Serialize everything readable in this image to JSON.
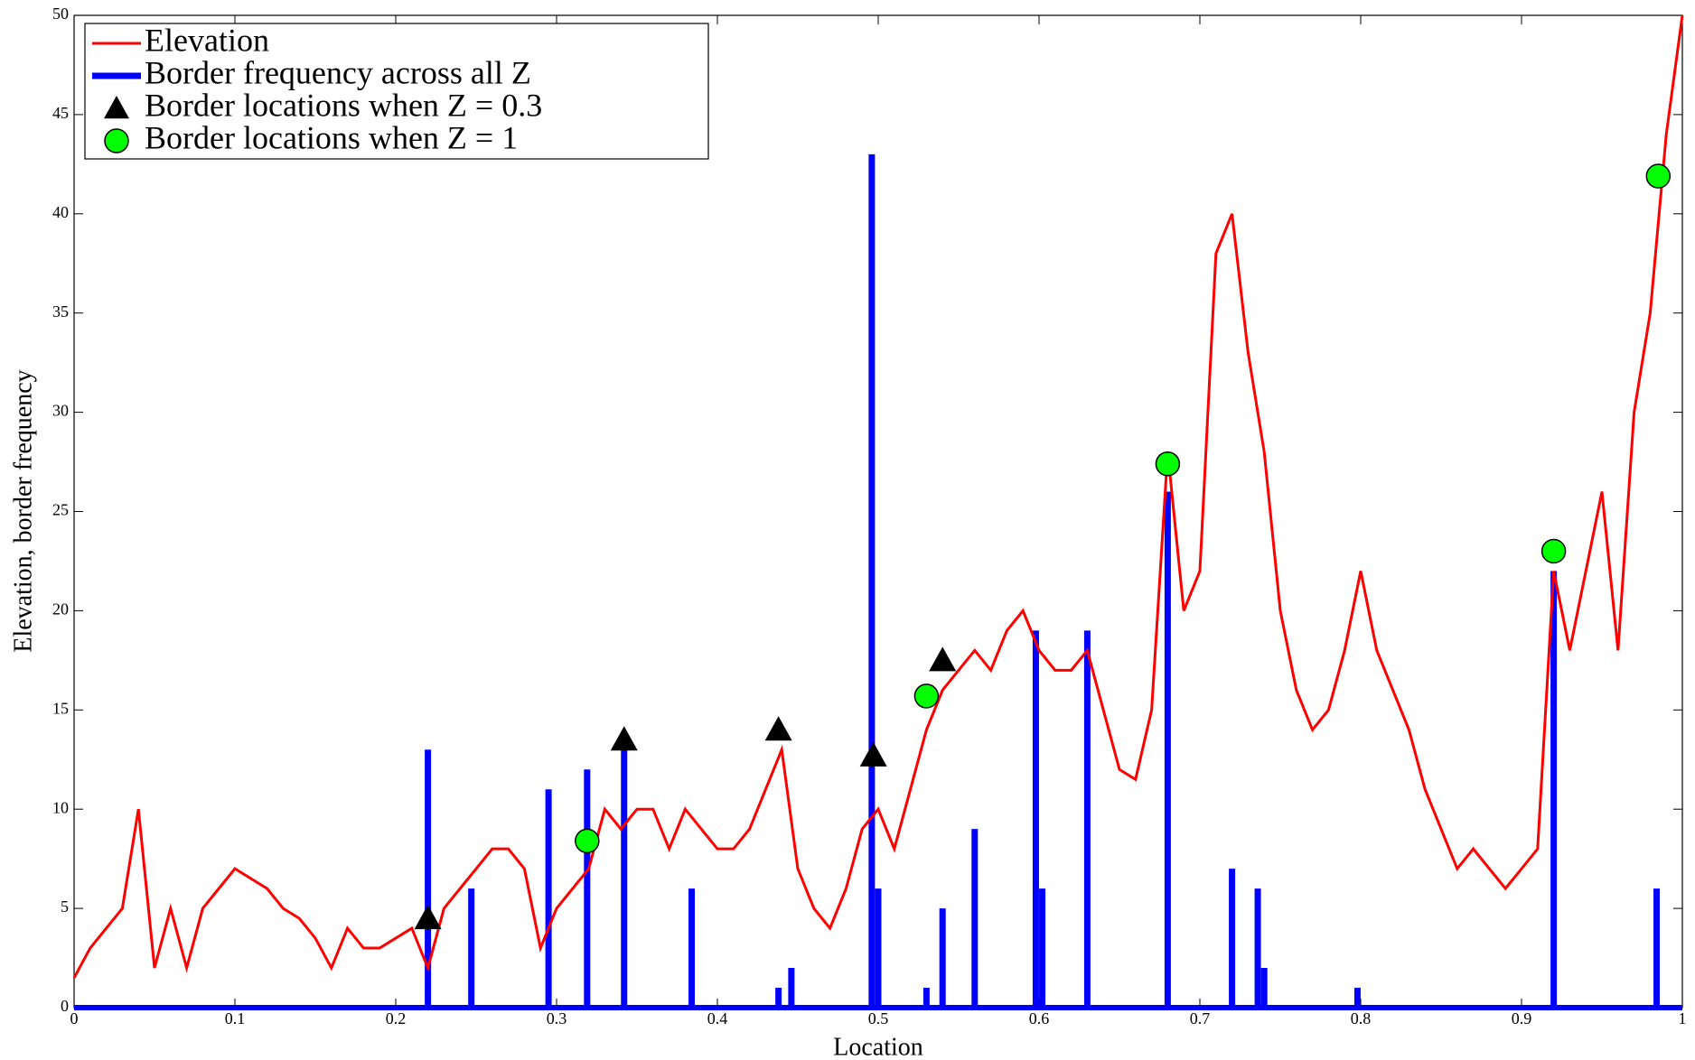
{
  "chart_data": {
    "type": "line",
    "x_label": "Location",
    "y_label": "Elevation, border frequency",
    "xlim": [
      0,
      1
    ],
    "ylim": [
      0,
      50
    ],
    "xticks": [
      0,
      0.1,
      0.2,
      0.3,
      0.4,
      0.5,
      0.6,
      0.7,
      0.8,
      0.9,
      1
    ],
    "yticks": [
      0,
      5,
      10,
      15,
      20,
      25,
      30,
      35,
      40,
      45,
      50
    ],
    "legend": "upper left",
    "series": [
      {
        "name": "Elevation",
        "type": "line",
        "color": "#ff0000",
        "x": [
          0,
          0.01,
          0.02,
          0.03,
          0.04,
          0.05,
          0.06,
          0.07,
          0.08,
          0.09,
          0.1,
          0.11,
          0.12,
          0.13,
          0.14,
          0.15,
          0.16,
          0.17,
          0.18,
          0.19,
          0.2,
          0.21,
          0.22,
          0.23,
          0.24,
          0.25,
          0.26,
          0.27,
          0.28,
          0.29,
          0.3,
          0.31,
          0.32,
          0.33,
          0.34,
          0.35,
          0.36,
          0.37,
          0.38,
          0.39,
          0.4,
          0.41,
          0.42,
          0.43,
          0.44,
          0.45,
          0.46,
          0.47,
          0.48,
          0.49,
          0.5,
          0.51,
          0.52,
          0.53,
          0.54,
          0.55,
          0.56,
          0.57,
          0.58,
          0.59,
          0.6,
          0.61,
          0.62,
          0.63,
          0.64,
          0.65,
          0.66,
          0.67,
          0.68,
          0.69,
          0.7,
          0.71,
          0.72,
          0.73,
          0.74,
          0.75,
          0.76,
          0.77,
          0.78,
          0.79,
          0.8,
          0.81,
          0.82,
          0.83,
          0.84,
          0.85,
          0.86,
          0.87,
          0.88,
          0.89,
          0.9,
          0.91,
          0.92,
          0.93,
          0.94,
          0.95,
          0.96,
          0.97,
          0.98,
          0.99,
          1
        ],
        "values": [
          1.5,
          3,
          4,
          5,
          10,
          2,
          5,
          2,
          5,
          6,
          7,
          6.5,
          6,
          5,
          4.5,
          3.5,
          2,
          4,
          3,
          3,
          3.5,
          4,
          2,
          5,
          6,
          7,
          8,
          8,
          7,
          3,
          5,
          6,
          7,
          10,
          9,
          10,
          10,
          8,
          10,
          9,
          8,
          8,
          9,
          11,
          13,
          7,
          5,
          4,
          6,
          9,
          10,
          8,
          11,
          14,
          16,
          17,
          18,
          17,
          19,
          20,
          18,
          17,
          17,
          18,
          15,
          12,
          11.5,
          15,
          28,
          20,
          22,
          38,
          40,
          33,
          28,
          20,
          16,
          14,
          15,
          18,
          22,
          18,
          16,
          14,
          11,
          9,
          7,
          8,
          7,
          6,
          7,
          8,
          22,
          18,
          22,
          26,
          18,
          30,
          35,
          44,
          50
        ]
      },
      {
        "name": "Border frequency across all Z",
        "type": "stem",
        "color": "#0000ff",
        "x": [
          0.22,
          0.247,
          0.295,
          0.319,
          0.342,
          0.384,
          0.438,
          0.446,
          0.496,
          0.5,
          0.53,
          0.54,
          0.56,
          0.598,
          0.602,
          0.63,
          0.68,
          0.72,
          0.736,
          0.74,
          0.798,
          0.92,
          0.984
        ],
        "values": [
          13,
          6,
          11,
          12,
          13,
          6,
          1,
          2,
          43,
          6,
          1,
          5,
          9,
          19,
          6,
          19,
          26,
          7,
          6,
          2,
          1,
          22,
          6
        ]
      },
      {
        "name": "Border locations when Z = 0.3",
        "type": "triangle",
        "color": "#000000",
        "x": [
          0.22,
          0.342,
          0.438,
          0.497,
          0.54
        ],
        "values": [
          4.5,
          13.5,
          14,
          12.7,
          17.5
        ]
      },
      {
        "name": "Border locations when Z = 1",
        "type": "circle",
        "color": "#00ff00",
        "x": [
          0.319,
          0.53,
          0.68,
          0.92,
          0.985
        ],
        "values": [
          8.4,
          15.7,
          27.4,
          23,
          41.9
        ]
      }
    ]
  }
}
